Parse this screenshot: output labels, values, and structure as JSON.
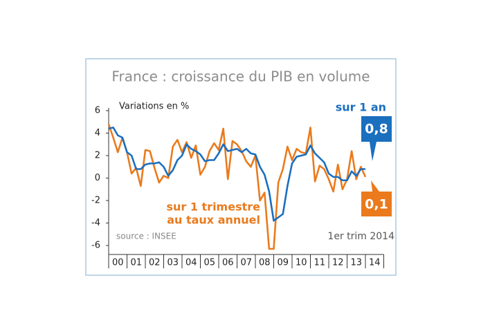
{
  "chart_data": {
    "type": "line",
    "title": "France : croissance du PIB en volume",
    "y_label": "Variations en %",
    "source": "source : INSEE",
    "period_note": "1er trim 2014",
    "x": [
      2000,
      2000.25,
      2000.5,
      2000.75,
      2001,
      2001.25,
      2001.5,
      2001.75,
      2002,
      2002.25,
      2002.5,
      2002.75,
      2003,
      2003.25,
      2003.5,
      2003.75,
      2004,
      2004.25,
      2004.5,
      2004.75,
      2005,
      2005.25,
      2005.5,
      2005.75,
      2006,
      2006.25,
      2006.5,
      2006.75,
      2007,
      2007.25,
      2007.5,
      2007.75,
      2008,
      2008.25,
      2008.5,
      2008.75,
      2009,
      2009.25,
      2009.5,
      2009.75,
      2010,
      2010.25,
      2010.5,
      2010.75,
      2011,
      2011.25,
      2011.5,
      2011.75,
      2012,
      2012.25,
      2012.5,
      2012.75,
      2013,
      2013.25,
      2013.5,
      2013.75,
      2014
    ],
    "series": [
      {
        "name": "sur 1 trimestre au taux annuel",
        "name_lines": [
          "sur 1 trimestre",
          "au taux annuel"
        ],
        "color": "#ea7a1c",
        "end_label": "0,1",
        "values": [
          4.8,
          3.6,
          2.3,
          3.6,
          2.3,
          0.4,
          0.9,
          -0.7,
          2.5,
          2.4,
          0.9,
          -0.4,
          0.2,
          0.0,
          2.8,
          3.4,
          2.3,
          3.2,
          1.8,
          2.9,
          0.3,
          1.0,
          2.4,
          3.1,
          2.5,
          4.4,
          -0.1,
          3.3,
          3.0,
          2.4,
          1.5,
          1.0,
          2.0,
          -2.0,
          -1.3,
          -6.3,
          -6.3,
          -0.4,
          0.8,
          2.8,
          1.6,
          2.6,
          2.3,
          2.2,
          4.5,
          -0.3,
          1.1,
          0.8,
          -0.1,
          -1.2,
          1.2,
          -1.0,
          -0.1,
          2.4,
          -0.1,
          1.0,
          0.1
        ]
      },
      {
        "name": "sur 1 an",
        "color": "#1a6fbf",
        "end_label": "0,8",
        "values": [
          4.4,
          4.5,
          3.8,
          3.6,
          2.3,
          2.0,
          0.8,
          0.8,
          1.2,
          1.3,
          1.3,
          1.4,
          1.0,
          0.2,
          0.7,
          1.6,
          2.0,
          3.0,
          2.6,
          2.4,
          2.1,
          1.5,
          1.6,
          1.6,
          2.2,
          3.0,
          2.4,
          2.5,
          2.6,
          2.3,
          2.6,
          2.2,
          2.1,
          1.0,
          0.3,
          -1.2,
          -3.8,
          -3.5,
          -3.2,
          -0.7,
          1.3,
          1.9,
          2.0,
          2.1,
          2.9,
          2.2,
          1.8,
          1.4,
          0.4,
          0.1,
          0.1,
          -0.2,
          -0.2,
          0.6,
          0.2,
          0.8,
          0.8
        ]
      }
    ],
    "xlim": [
      2000,
      2015
    ],
    "xticks": [
      {
        "value": 2000.5,
        "label": "00"
      },
      {
        "value": 2001.5,
        "label": "01"
      },
      {
        "value": 2002.5,
        "label": "02"
      },
      {
        "value": 2003.5,
        "label": "03"
      },
      {
        "value": 2004.5,
        "label": "04"
      },
      {
        "value": 2005.5,
        "label": "05"
      },
      {
        "value": 2006.5,
        "label": "06"
      },
      {
        "value": 2007.5,
        "label": "07"
      },
      {
        "value": 2008.5,
        "label": "08"
      },
      {
        "value": 2009.5,
        "label": "09"
      },
      {
        "value": 2010.5,
        "label": "10"
      },
      {
        "value": 2011.5,
        "label": "11"
      },
      {
        "value": 2012.5,
        "label": "12"
      },
      {
        "value": 2013.5,
        "label": "13"
      },
      {
        "value": 2014.5,
        "label": "14"
      }
    ],
    "ylim": [
      -6.8,
      6
    ],
    "yticks": [
      6,
      4,
      2,
      0,
      -2,
      -4,
      -6
    ]
  }
}
